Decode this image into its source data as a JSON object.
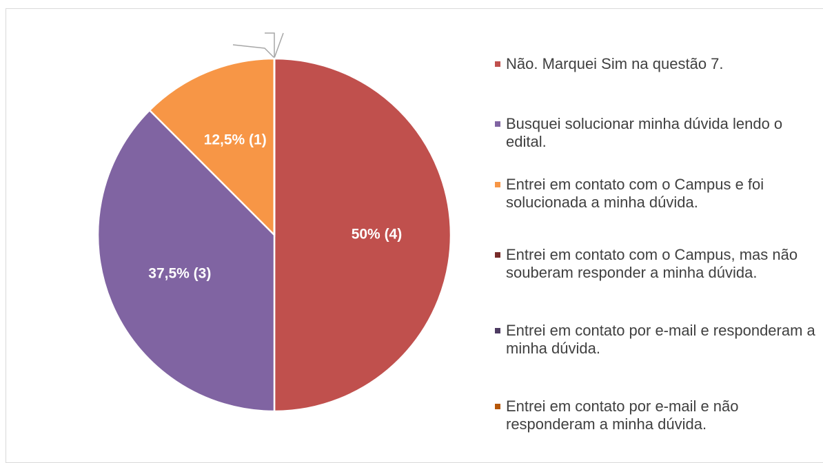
{
  "chart_data": {
    "type": "pie",
    "categories": [
      "Não. Marquei Sim na questão 7.",
      "Busquei solucionar minha dúvida lendo o edital.",
      "Entrei em contato com o Campus e foi solucionada a minha dúvida.",
      "Entrei em contato com o Campus, mas não souberam responder a minha dúvida.",
      "Entrei em contato por e-mail e responderam a minha dúvida.",
      "Entrei em contato por e-mail e não responderam a minha dúvida."
    ],
    "values": [
      50,
      37.5,
      12.5,
      0,
      0,
      0
    ],
    "value_labels": [
      "50% (4)",
      "37,5% (3)",
      "12,5% (1)",
      null,
      null,
      null
    ],
    "colors": [
      "#c0504d",
      "#8064a2",
      "#f79646",
      "#772c2a",
      "#4d3b62",
      "#b65708"
    ],
    "legend": "right"
  }
}
